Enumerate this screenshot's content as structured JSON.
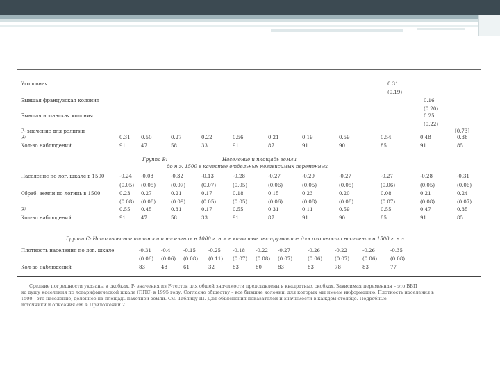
{
  "panel_a": {
    "rows": [
      {
        "label": "Уголовная",
        "values": [
          {
            "col": 10,
            "v": "0.31"
          }
        ]
      },
      {
        "label": "",
        "values": [
          {
            "col": 10,
            "v": "(0.19)"
          }
        ]
      },
      {
        "label": "Бывшая французская колония",
        "values": [
          {
            "col": 11,
            "v": "0.16"
          }
        ]
      },
      {
        "label": "",
        "values": [
          {
            "col": 11,
            "v": "(0.20)"
          }
        ]
      },
      {
        "label": "Бывшая испанская колония",
        "values": [
          {
            "col": 11,
            "v": "0.25"
          }
        ]
      },
      {
        "label": "",
        "values": [
          {
            "col": 11,
            "v": "(0.22)"
          }
        ]
      }
    ],
    "pvalue_label": "P- значение для религии",
    "pvalue_extra": "[0.73]",
    "r2_label": "R²",
    "r2": [
      "0.31",
      "0.50",
      "0.27",
      "0.22",
      "0.56",
      "0.21",
      "0.19",
      "0.59",
      "0.54",
      "0.48",
      "0.38"
    ],
    "n_label": "Кол-во наблюдений",
    "n": [
      "91",
      "47",
      "58",
      "33",
      "91",
      "87",
      "91",
      "90",
      "85",
      "91",
      "85"
    ]
  },
  "panel_b": {
    "title_a": "Группа  B:",
    "title_b": "Население и  площадь земли",
    "title_c": "до  н.э. 1500 в качестве отдельных независимых переменных",
    "row1_label": "Население по лог. шкале в 1500",
    "row1": [
      "-0.24",
      "-0.08",
      "-0.32",
      "-0.13",
      "-0.28",
      "-0.27",
      "-0.29",
      "-0.27",
      "-0.27",
      "-0.28",
      "-0.31"
    ],
    "row1_se": [
      "(0.05)",
      "(0.05)",
      "(0.07)",
      "(0.07)",
      "(0.05)",
      "(0.06)",
      "(0.05)",
      "(0.05)",
      "(0.06)",
      "(0.05)",
      "(0.06)"
    ],
    "row2_label": "Сбраб. земли по логниь в 1500",
    "row2": [
      "0.23",
      "0.27",
      "0.21",
      "0.17",
      "0.18",
      "0.15",
      "0.23",
      "0.20",
      "0.08",
      "0.21",
      "0.24"
    ],
    "row2_se": [
      "(0.08)",
      "(0.08)",
      "(0.09)",
      "(0.05)",
      "(0.05)",
      "(0.06)",
      "(0.08)",
      "(0.08)",
      "(0.07)",
      "(0.08)",
      "(0.07)"
    ],
    "r2_label": "R²",
    "r2": [
      "0.55",
      "0.45",
      "0.31",
      "0.17",
      "0.55",
      "0.31",
      "0.11",
      "0.59",
      "0.55",
      "0.47",
      "0.35"
    ],
    "n_label": "Кол-во наблюдений",
    "n": [
      "91",
      "47",
      "58",
      "33",
      "91",
      "87",
      "91",
      "90",
      "85",
      "91",
      "85"
    ]
  },
  "panel_c": {
    "title": "Группа  С- Использование плотности населения в 1000 г. н.э. в качестве инструментов для плотности населения в 1500 г. н.э",
    "row_label": "Плотность населения по лог. шкале",
    "row": [
      "-0.31",
      "-0.4",
      "-0.15",
      "-0.25",
      "-0.18",
      "-0.22",
      "-0.27",
      "-0.26",
      "-0.22",
      "-0.26",
      "-0.35"
    ],
    "row_se": [
      "(0.06)",
      "(0.06)",
      "(0.08)",
      "(0.11)",
      "(0.07)",
      "(0.08)",
      "(0.07)",
      "(0.06)",
      "(0.07)",
      "(0.06)",
      "(0.08)"
    ],
    "n_label": "Кол-во наблюдений",
    "n": [
      "83",
      "48",
      "61",
      "32",
      "83",
      "80",
      "83",
      "83",
      "78",
      "83",
      "77"
    ]
  },
  "footnote": [
    "Средние погрешности указаны в скобках. P- значения из F-тестов для общей значимости представлены в квадратных скобках. Зависимая переменная – это ВВП",
    "на душу населения по логарифмической шкале (ППС) в 1995 году. Согласно обществу – все бывшие колонии, для которых мы имеем информацию. Плотность населения в",
    "1500 - это население, деленное на площадь пахотной земли. См. Таблицу III. Для объяснения показателей и значимости в каждом столбце. Подробные",
    "источники и описания см. в Приложении 2."
  ]
}
